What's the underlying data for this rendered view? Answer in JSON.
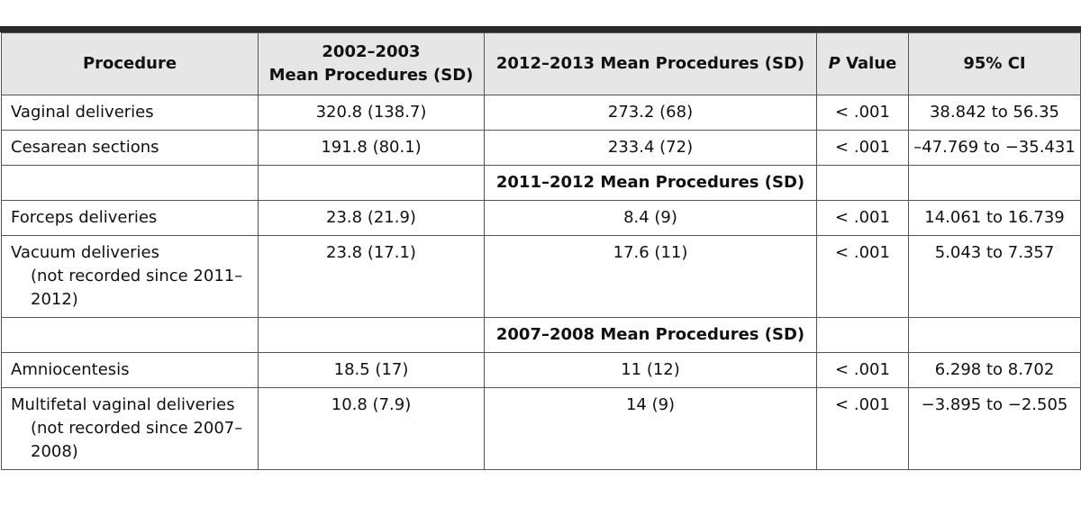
{
  "table": {
    "headers": {
      "procedure": "Procedure",
      "period1_line1": "2002–2003",
      "period1_line2": "Mean Procedures (SD)",
      "period2": "2012–2013 Mean Procedures (SD)",
      "p_value_italic": "P",
      "p_value_rest": " Value",
      "ci": "95% CI"
    },
    "rows": [
      {
        "procedure": "Vaginal deliveries",
        "note": "",
        "mean1": "320.8 (138.7)",
        "mean2": "273.2 (68)",
        "p": "< .001",
        "ci": "38.842 to 56.35"
      },
      {
        "procedure": "Cesarean sections",
        "note": "",
        "mean1": "191.8 (80.1)",
        "mean2": "233.4 (72)",
        "p": "< .001",
        "ci": "–47.769 to −35.431"
      }
    ],
    "subheader1": "2011–2012 Mean Procedures (SD)",
    "rows2": [
      {
        "procedure": "Forceps deliveries",
        "note": "",
        "mean1": "23.8 (21.9)",
        "mean2": "8.4 (9)",
        "p": "< .001",
        "ci": "14.061 to 16.739"
      },
      {
        "procedure": "Vacuum deliveries",
        "note": "(not recorded since 2011–2012)",
        "mean1": "23.8 (17.1)",
        "mean2": "17.6 (11)",
        "p": "< .001",
        "ci": "5.043 to 7.357"
      }
    ],
    "subheader2": "2007–2008 Mean Procedures (SD)",
    "rows3": [
      {
        "procedure": "Amniocentesis",
        "note": "",
        "mean1": "18.5 (17)",
        "mean2": "11 (12)",
        "p": "< .001",
        "ci": "6.298 to 8.702"
      },
      {
        "procedure": "Multifetal vaginal deliveries",
        "note": "(not recorded since 2007–2008)",
        "mean1": "10.8 (7.9)",
        "mean2": "14 (9)",
        "p": "< .001",
        "ci": "−3.895 to −2.505"
      }
    ]
  }
}
